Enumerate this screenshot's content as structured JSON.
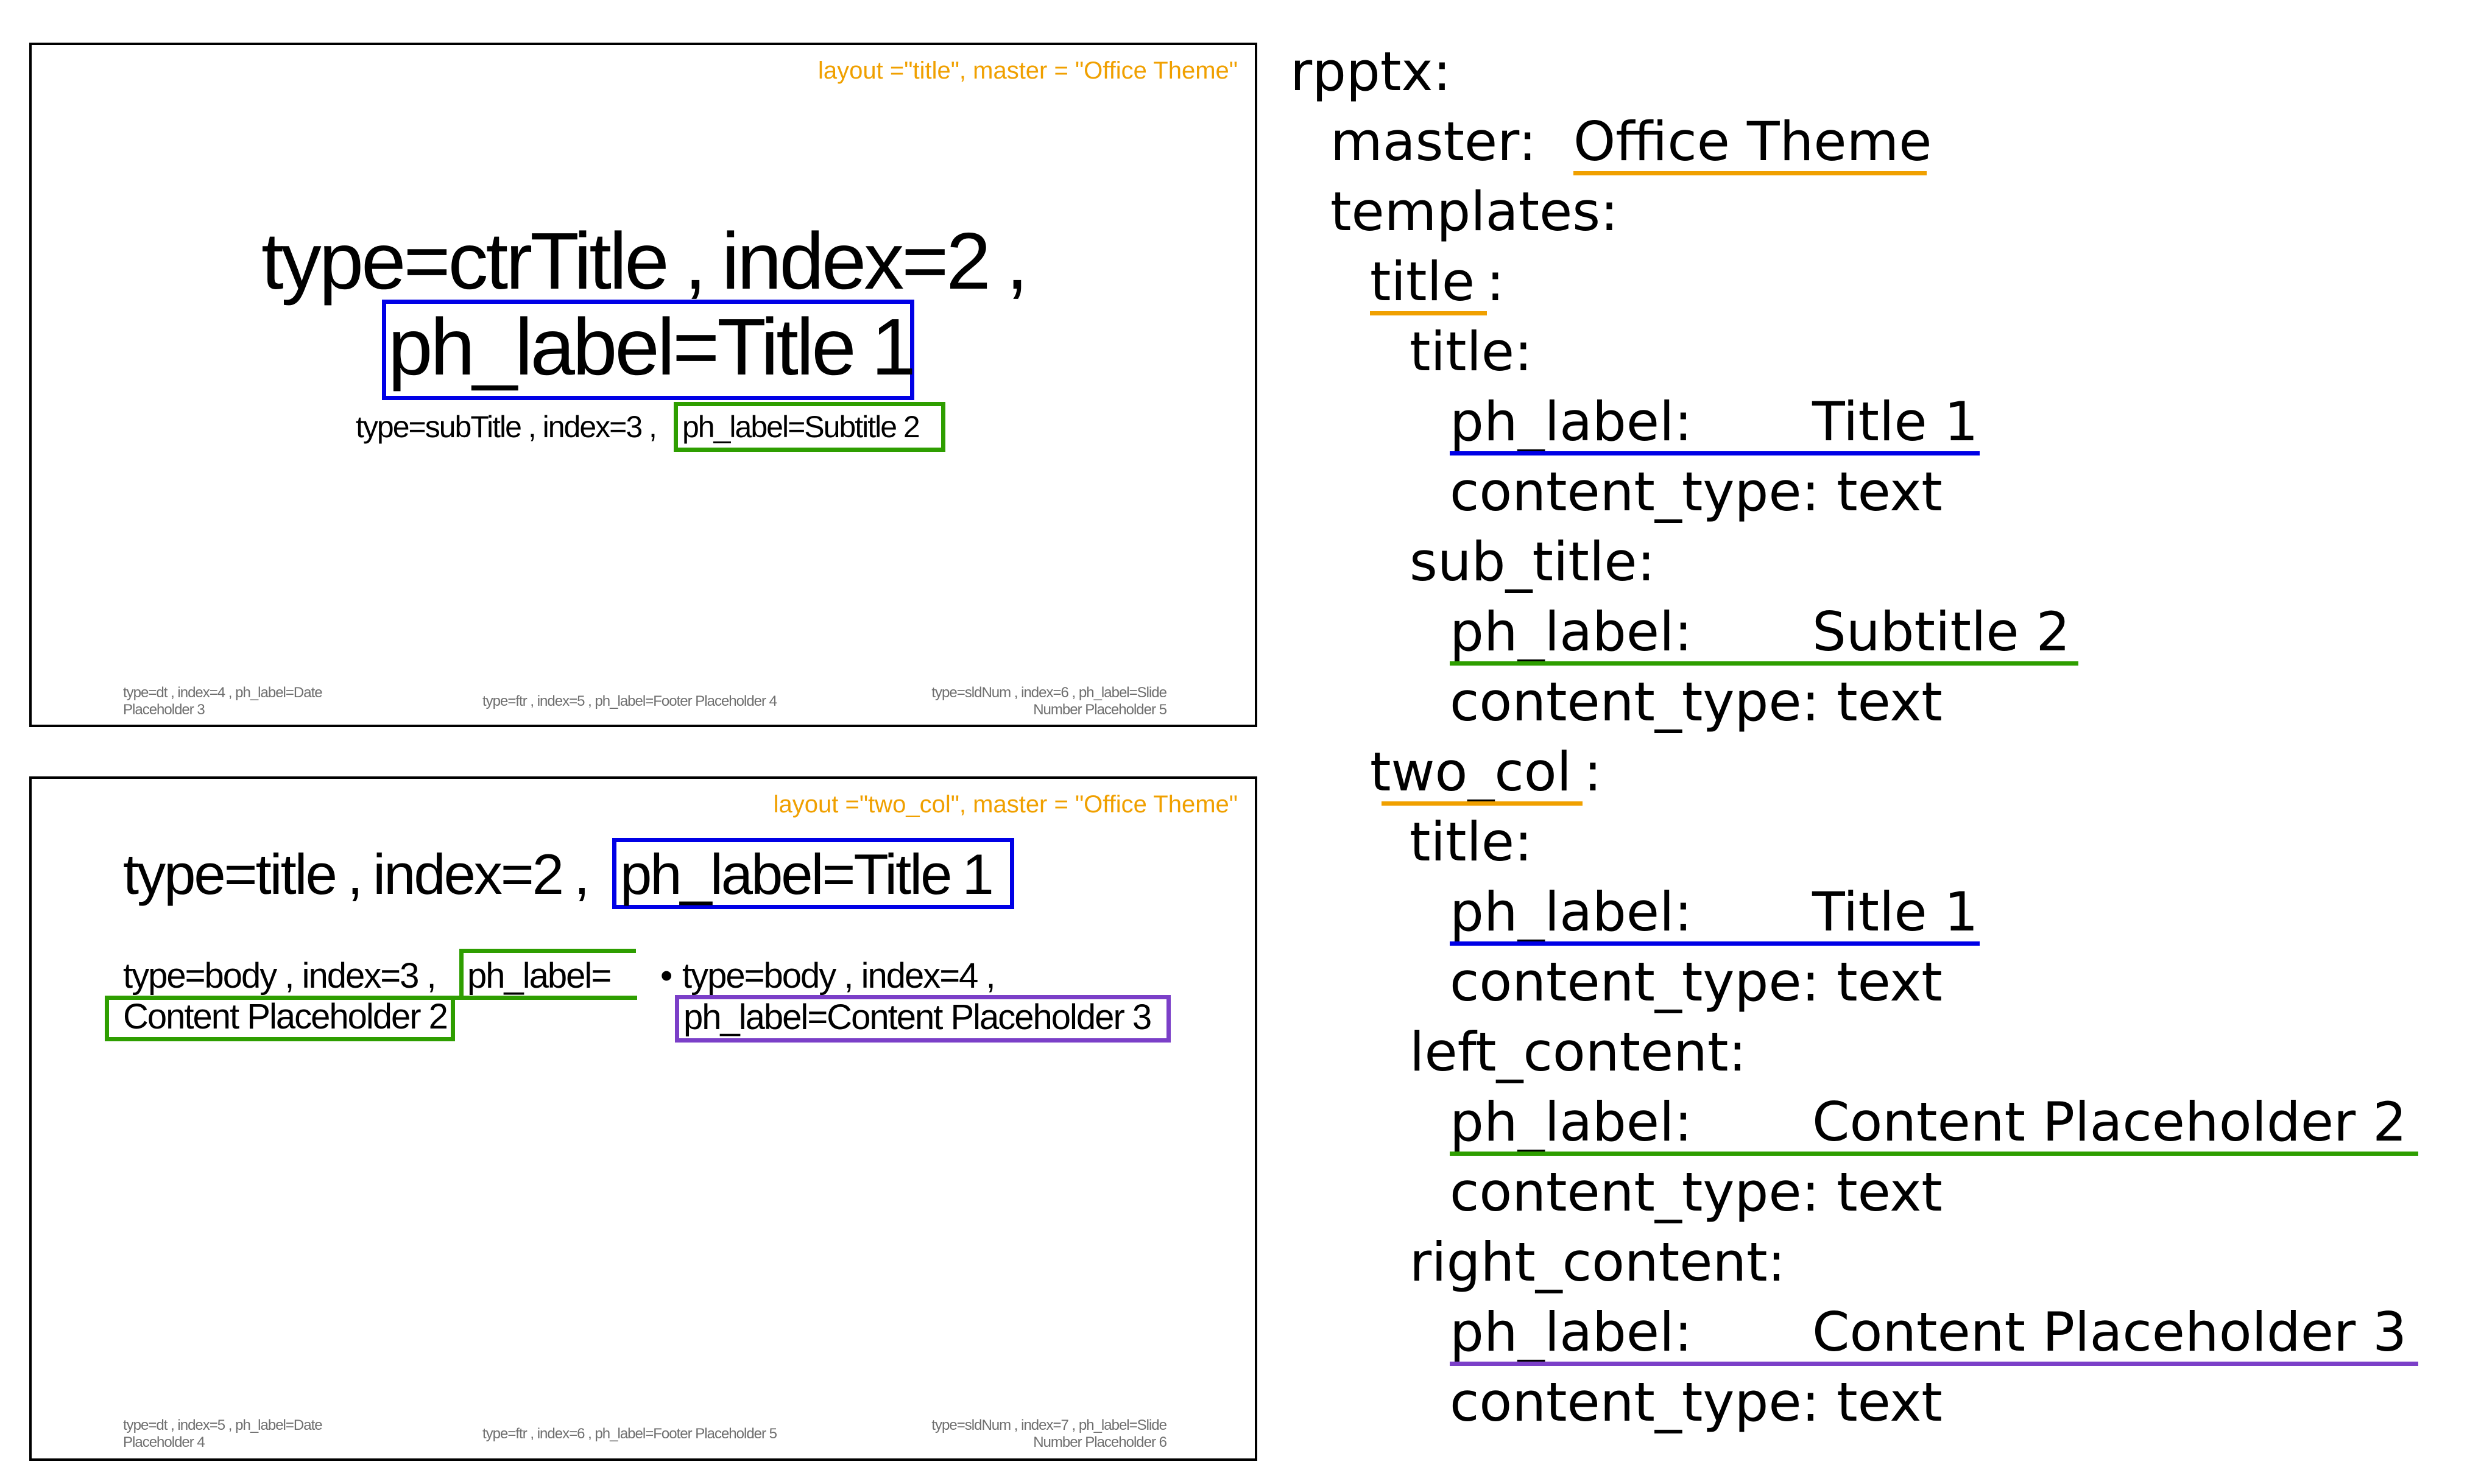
{
  "colors": {
    "title_label": "#0000e6",
    "subtitle_label": "#2e9e00",
    "content_placeholder_3": "#7b3fc8",
    "layout_master": "#f0a000"
  },
  "slide_title": {
    "layout_note": "layout =\"title\", master = \"Office Theme\"",
    "title_prefix": "type=ctrTitle , index=2 ,",
    "title_label": "ph_label=Title 1",
    "subtitle_prefix": "type=subTitle , index=3 ,",
    "subtitle_label": "ph_label=Subtitle 2",
    "footer_date": "type=dt , index=4 , ph_label=Date Placeholder 3",
    "footer_date_line1": "type=dt , index=4 , ph_label=Date",
    "footer_date_line2": "Placeholder 3",
    "footer_ftr": "type=ftr , index=5 , ph_label=Footer Placeholder 4",
    "footer_sldnum_line1": "type=sldNum , index=6 , ph_label=Slide",
    "footer_sldnum_line2": "Number Placeholder 5"
  },
  "slide_two_col": {
    "layout_note": "layout =\"two_col\", master = \"Office Theme\"",
    "title_prefix": "type=title , index=2 ,",
    "title_label": "ph_label=Title 1",
    "left_line1_prefix": "type=body , index=3 ,",
    "left_line1_label": "ph_label=",
    "left_line2": "Content Placeholder 2",
    "right_bullet": "•",
    "right_line1": "type=body , index=4 ,",
    "right_line2": "ph_label=Content Placeholder 3",
    "footer_date_line1": "type=dt , index=5 , ph_label=Date",
    "footer_date_line2": "Placeholder 4",
    "footer_ftr": "type=ftr , index=6 , ph_label=Footer Placeholder 5",
    "footer_sldnum_line1": "type=sldNum , index=7 , ph_label=Slide",
    "footer_sldnum_line2": "Number Placeholder 6"
  },
  "yaml": {
    "root": "rpptx:",
    "master_key": "master:",
    "master_value": "Office Theme",
    "templates_key": "templates:",
    "title_layout_key": "title",
    "two_col_layout_key": "two_col",
    "colon": ":",
    "title_key": "title:",
    "sub_title_key": "sub_title:",
    "left_content_key": "left_content:",
    "right_content_key": "right_content:",
    "ph_label_key": "ph_label:",
    "content_type_line": "content_type: text",
    "title_1": "Title 1",
    "subtitle_2": "Subtitle 2",
    "content_placeholder_2": "Content Placeholder 2",
    "content_placeholder_3": "Content Placeholder 3"
  }
}
